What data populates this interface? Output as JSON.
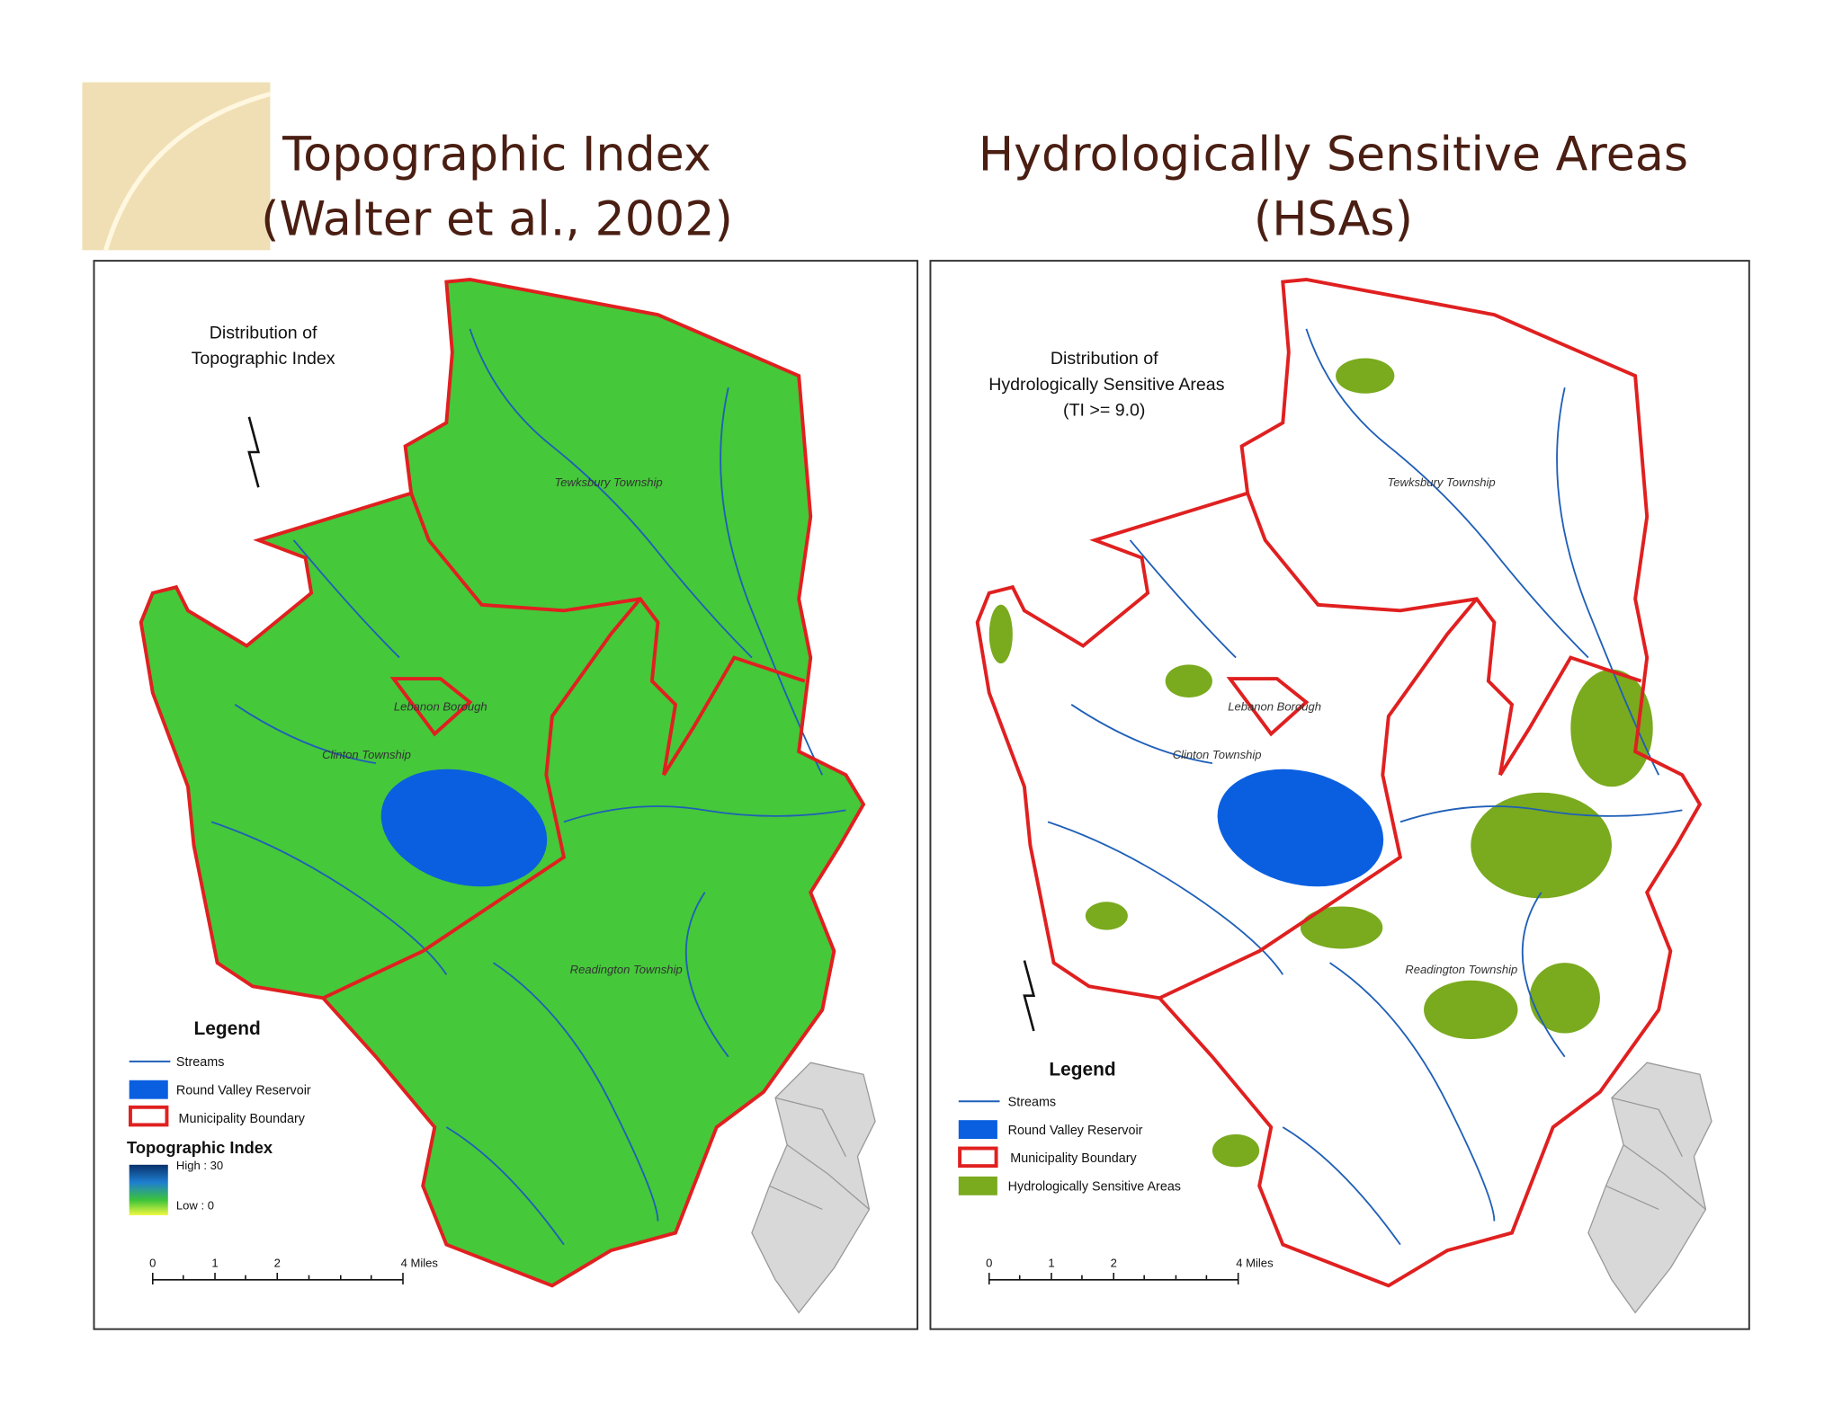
{
  "left": {
    "heading": [
      "Topographic Index",
      "(Walter et al., 2002)"
    ],
    "map_title": [
      "Distribution of",
      "Topographic Index"
    ],
    "places": [
      "Tewksbury Township",
      "Lebanon Borough",
      "Clinton Township",
      "Readington Township"
    ],
    "legend": {
      "title": "Legend",
      "items": [
        "Streams",
        "Round Valley Reservoir",
        "Municipality Boundary"
      ],
      "ramp_title": "Topographic Index",
      "high": "High : 30",
      "low": "Low : 0"
    },
    "scale": [
      "0",
      "1",
      "2",
      "4 Miles"
    ]
  },
  "right": {
    "heading": [
      "Hydrologically Sensitive Areas",
      "(HSAs)"
    ],
    "map_title": [
      "Distribution of",
      "Hydrologically Sensitive Areas",
      "(TI >= 9.0)"
    ],
    "places": [
      "Tewksbury Township",
      "Lebanon Borough",
      "Clinton Township",
      "Readington Township"
    ],
    "legend": {
      "title": "Legend",
      "items": [
        "Streams",
        "Round Valley Reservoir",
        "Municipality Boundary",
        "Hydrologically Sensitive Areas"
      ]
    },
    "scale": [
      "0",
      "1",
      "2",
      "4 Miles"
    ]
  }
}
